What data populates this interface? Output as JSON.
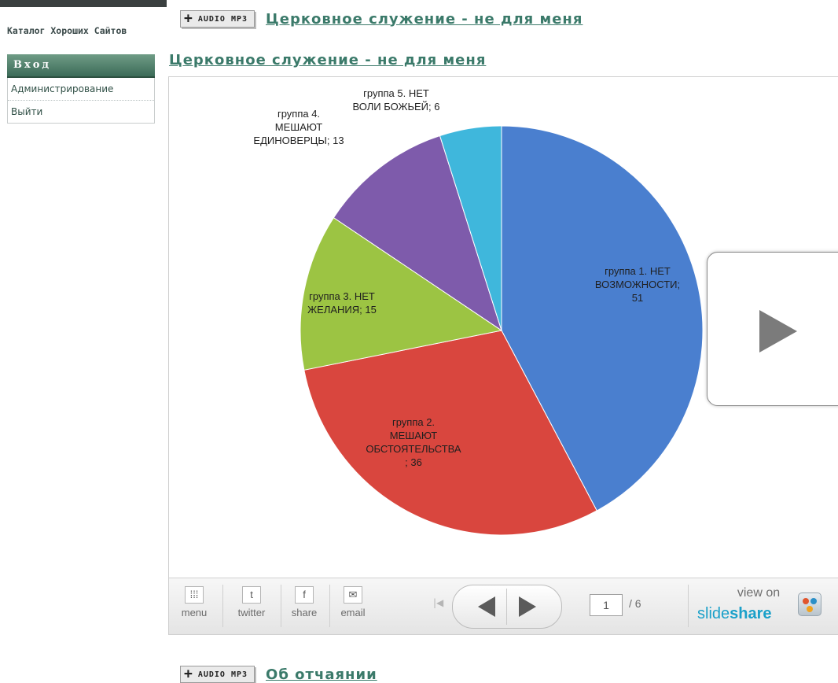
{
  "sidebar": {
    "catalog_link": "Каталог Хороших Сайтов",
    "login_heading": "Вход",
    "menu": [
      {
        "label": "Администрирование"
      },
      {
        "label": "Выйти"
      }
    ]
  },
  "audio_rows": [
    {
      "badge": "AUDIO MP3",
      "title": "Церковное служение - не для меня"
    },
    {
      "badge": "AUDIO MP3",
      "title": "Об отчаянии"
    }
  ],
  "section_title": "Церковное служение - не для меня",
  "chart_data": {
    "type": "pie",
    "title": "",
    "slices": [
      {
        "label": "группа 1. НЕТ ВОЗМОЖНОСТИ; 51",
        "value": 51,
        "color": "#4a7fcf"
      },
      {
        "label": "группа 2. МЕШАЮТ ОБСТОЯТЕЛЬСТВА ; 36",
        "value": 36,
        "color": "#d9463e"
      },
      {
        "label": "группа 3. НЕТ ЖЕЛАНИЯ; 15",
        "value": 15,
        "color": "#9cc443"
      },
      {
        "label": "группа 4. МЕШАЮТ ЕДИНОВЕРЦЫ; 13",
        "value": 13,
        "color": "#7e5bab"
      },
      {
        "label": "группа 5. НЕТ ВОЛИ БОЖЬЕЙ; 6",
        "value": 6,
        "color": "#3fb7dc"
      }
    ],
    "legend": "none"
  },
  "pie_labels": {
    "g1": [
      "группа 1. НЕТ",
      "ВОЗМОЖНОСТИ;",
      "51"
    ],
    "g2": [
      "группа 2.",
      "МЕШАЮТ",
      "ОБСТОЯТЕЛЬСТВА",
      "; 36"
    ],
    "g3": [
      "группа 3. НЕТ",
      "ЖЕЛАНИЯ; 15"
    ],
    "g4": [
      "группа 4.",
      "МЕШАЮТ",
      "ЕДИНОВЕРЦЫ; 13"
    ],
    "g5": [
      "группа 5. НЕТ",
      "ВОЛИ БОЖЬЕЙ; 6"
    ]
  },
  "player": {
    "buttons": {
      "menu": {
        "label": "menu",
        "icon": "grid-icon"
      },
      "twitter": {
        "label": "twitter",
        "icon": "twitter-icon"
      },
      "share": {
        "label": "share",
        "icon": "facebook-icon"
      },
      "email": {
        "label": "email",
        "icon": "mail-icon"
      }
    },
    "current_page": "1",
    "total_pages": "/ 6",
    "view_on": "view on",
    "brand_light": "slide",
    "brand_bold": "share"
  }
}
